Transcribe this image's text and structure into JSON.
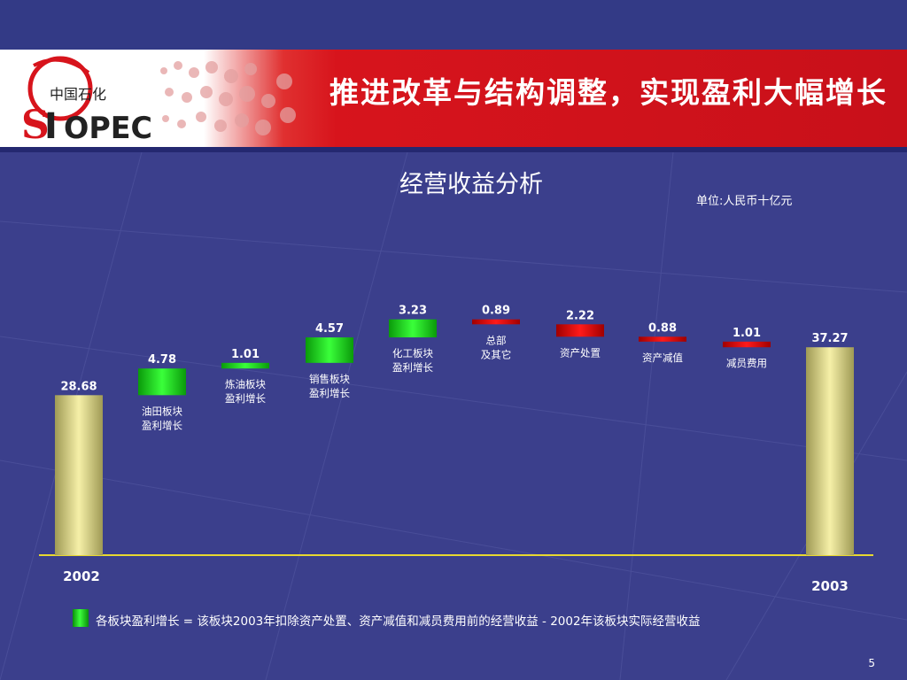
{
  "slide": {
    "title": "推进改革与结构调整，实现盈利大幅增长",
    "logo_text": "SINOPEC",
    "logo_cn": "中国石化",
    "page_number": "5",
    "legend_text": "各板块盈利增长 = 该板块2003年扣除资产处置、资产减值和减员费用前的经营收益 - 2002年该板块实际经营收益"
  },
  "colors": {
    "background": "#3b3f8c",
    "banner_red": "#d7141c",
    "increase_green": "#22e022",
    "decrease_red": "#d40000",
    "total_khaki": "#ece48a",
    "axis_yellow": "#e8d830"
  },
  "chart_data": {
    "type": "bar",
    "subtype": "waterfall",
    "title": "经营收益分析",
    "unit_label": "单位:人民币十亿元",
    "ylim": [
      0,
      40
    ],
    "bars": [
      {
        "label": "",
        "value_label": "28.68",
        "kind": "total",
        "base": 0,
        "top": 28.68
      },
      {
        "label": "油田板块\n盈利增长",
        "value_label": "4.78",
        "kind": "increase",
        "base": 28.68,
        "top": 33.46
      },
      {
        "label": "炼油板块\n盈利增长",
        "value_label": "1.01",
        "kind": "increase",
        "base": 33.46,
        "top": 34.47
      },
      {
        "label": "销售板块\n盈利增长",
        "value_label": "4.57",
        "kind": "increase",
        "base": 34.47,
        "top": 39.04
      },
      {
        "label": "化工板块\n盈利增长",
        "value_label": "3.23",
        "kind": "increase",
        "base": 39.04,
        "top": 42.27
      },
      {
        "label": "总部\n及其它",
        "value_label": "0.89",
        "kind": "decrease",
        "base": 41.38,
        "top": 42.27
      },
      {
        "label": "资产处置",
        "value_label": "2.22",
        "kind": "decrease",
        "base": 39.16,
        "top": 41.38
      },
      {
        "label": "资产减值",
        "value_label": "0.88",
        "kind": "decrease",
        "base": 38.28,
        "top": 39.16
      },
      {
        "label": "减员费用",
        "value_label": "1.01",
        "kind": "decrease",
        "base": 37.27,
        "top": 38.28
      },
      {
        "label": "",
        "value_label": "37.27",
        "kind": "total",
        "base": 0,
        "top": 37.27
      }
    ],
    "x_labels": [
      "2002",
      "2003"
    ]
  }
}
